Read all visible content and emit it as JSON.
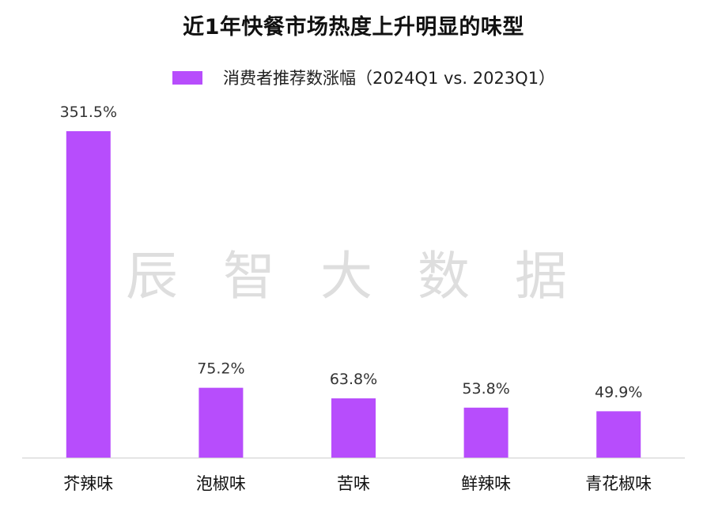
{
  "title": "近1年快餐市场热度上升明显的味型",
  "watermark": "辰 智 大 数 据",
  "colors": {
    "bar": "#b74dfc",
    "axis": "#d9d9d9",
    "label_text": "#333333",
    "category_text": "#111111",
    "watermark": "#dedede"
  },
  "chart_data": {
    "type": "bar",
    "title": "近1年快餐市场热度上升明显的味型",
    "xlabel": "",
    "ylabel": "",
    "categories": [
      "芥辣味",
      "泡椒味",
      "苦味",
      "鲜辣味",
      "青花椒味"
    ],
    "series": [
      {
        "name": "消费者推荐数涨幅（2024Q1 vs. 2023Q1）",
        "values": [
          351.5,
          75.2,
          63.8,
          53.8,
          49.9
        ],
        "value_labels": [
          "351.5%",
          "75.2%",
          "63.8%",
          "53.8%",
          "49.9%"
        ]
      }
    ],
    "unit": "%",
    "ylim": [
      0,
      351.5
    ],
    "grid": false,
    "legend": "top-center",
    "yaxis_visible": false
  }
}
